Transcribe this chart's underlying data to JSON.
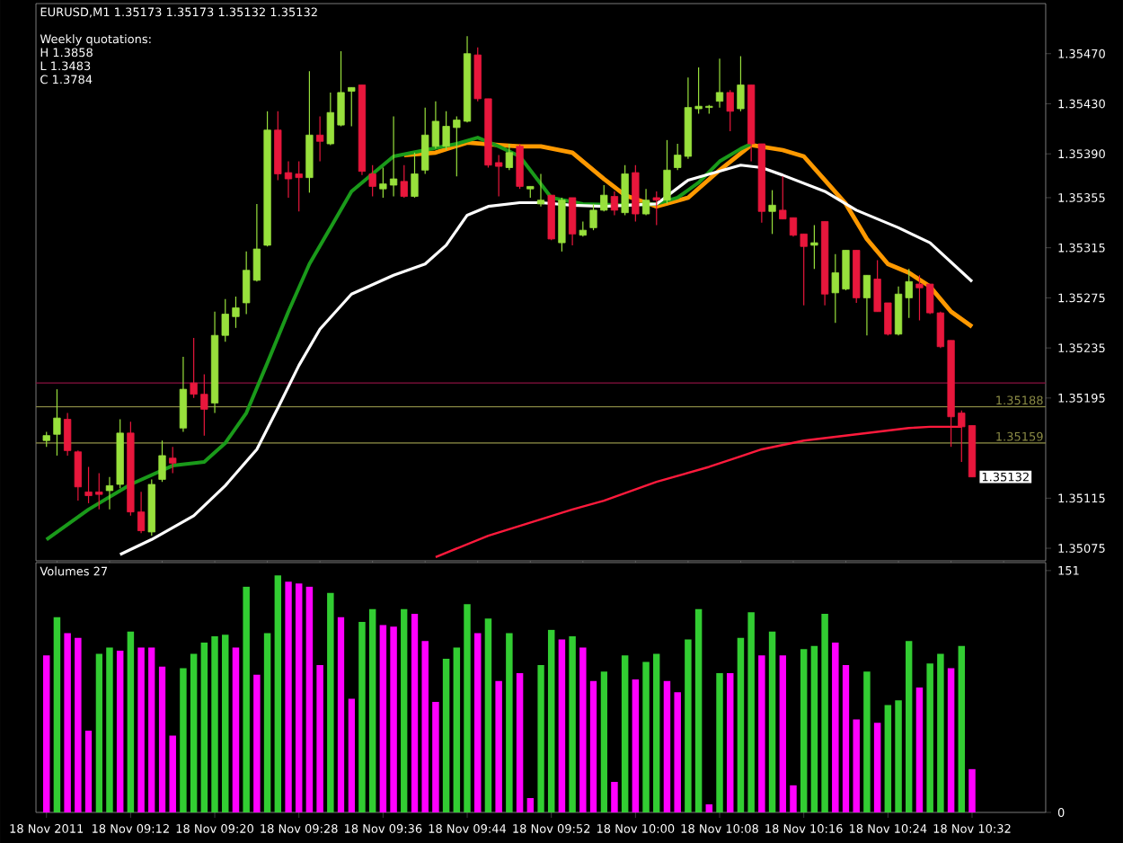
{
  "chart_data": [
    {
      "type": "candlestick",
      "title": "EURUSD,M1  1.35173 1.35173 1.35132 1.35132",
      "annotations": [
        "Weekly quotations:",
        "H 1.3858",
        "L 1.3483",
        "C 1.3784",
        {
          "text": "1.35132",
          "x": "2011-11-18T10:32",
          "y": 1.35132
        }
      ],
      "x": [
        "2011-11-18T09:04",
        "2011-11-18T09:05",
        "2011-11-18T09:06",
        "2011-11-18T09:07",
        "2011-11-18T09:08",
        "2011-11-18T09:09",
        "2011-11-18T09:10",
        "2011-11-18T09:11",
        "2011-11-18T09:12",
        "2011-11-18T09:13",
        "2011-11-18T09:14",
        "2011-11-18T09:15",
        "2011-11-18T09:16",
        "2011-11-18T09:17",
        "2011-11-18T09:18",
        "2011-11-18T09:19",
        "2011-11-18T09:20",
        "2011-11-18T09:21",
        "2011-11-18T09:22",
        "2011-11-18T09:23",
        "2011-11-18T09:24",
        "2011-11-18T09:25",
        "2011-11-18T09:26",
        "2011-11-18T09:27",
        "2011-11-18T09:28",
        "2011-11-18T09:29",
        "2011-11-18T09:30",
        "2011-11-18T09:31",
        "2011-11-18T09:32",
        "2011-11-18T09:33",
        "2011-11-18T09:34",
        "2011-11-18T09:35",
        "2011-11-18T09:36",
        "2011-11-18T09:37",
        "2011-11-18T09:38",
        "2011-11-18T09:39",
        "2011-11-18T09:40",
        "2011-11-18T09:41",
        "2011-11-18T09:42",
        "2011-11-18T09:43",
        "2011-11-18T09:44",
        "2011-11-18T09:45",
        "2011-11-18T09:46",
        "2011-11-18T09:47",
        "2011-11-18T09:48",
        "2011-11-18T09:49",
        "2011-11-18T09:50",
        "2011-11-18T09:51",
        "2011-11-18T09:52",
        "2011-11-18T09:53",
        "2011-11-18T09:54",
        "2011-11-18T09:55",
        "2011-11-18T09:56",
        "2011-11-18T09:57",
        "2011-11-18T09:58",
        "2011-11-18T09:59",
        "2011-11-18T10:00",
        "2011-11-18T10:01",
        "2011-11-18T10:02",
        "2011-11-18T10:03",
        "2011-11-18T10:04",
        "2011-11-18T10:05",
        "2011-11-18T10:06",
        "2011-11-18T10:07",
        "2011-11-18T10:08",
        "2011-11-18T10:09",
        "2011-11-18T10:10",
        "2011-11-18T10:11",
        "2011-11-18T10:12",
        "2011-11-18T10:13",
        "2011-11-18T10:14",
        "2011-11-18T10:15",
        "2011-11-18T10:16",
        "2011-11-18T10:17",
        "2011-11-18T10:18",
        "2011-11-18T10:19",
        "2011-11-18T10:20",
        "2011-11-18T10:21",
        "2011-11-18T10:22",
        "2011-11-18T10:23",
        "2011-11-18T10:24",
        "2011-11-18T10:25",
        "2011-11-18T10:26",
        "2011-11-18T10:27",
        "2011-11-18T10:28",
        "2011-11-18T10:29",
        "2011-11-18T10:30",
        "2011-11-18T10:31",
        "2011-11-18T10:32"
      ],
      "series": [
        {
          "type": "line",
          "color": "#ff9900",
          "x": [
            "2011-11-18T09:38",
            "2011-11-18T09:41",
            "2011-11-18T09:44",
            "2011-11-18T09:47",
            "2011-11-18T09:49",
            "2011-11-18T09:51",
            "2011-11-18T09:54",
            "2011-11-18T09:57",
            "2011-11-18T09:59",
            "2011-11-18T10:02",
            "2011-11-18T10:05",
            "2011-11-18T10:08",
            "2011-11-18T10:11",
            "2011-11-18T10:14",
            "2011-11-18T10:16",
            "2011-11-18T10:18",
            "2011-11-18T10:20",
            "2011-11-18T10:22",
            "2011-11-18T10:24",
            "2011-11-18T10:26",
            "2011-11-18T10:28",
            "2011-11-18T10:30",
            "2011-11-18T10:32"
          ],
          "values": [
            1.35389,
            1.35391,
            1.35399,
            1.35397,
            1.35396,
            1.35396,
            1.35391,
            1.3537,
            1.35357,
            1.35348,
            1.35355,
            1.35377,
            1.35397,
            1.35393,
            1.35388,
            1.35369,
            1.3535,
            1.35322,
            1.35302,
            1.35295,
            1.35284,
            1.35264,
            1.35252
          ]
        },
        {
          "type": "line",
          "color": "#1a9a1a",
          "x": [
            "2011-11-18T09:04",
            "2011-11-18T09:08",
            "2011-11-18T09:12",
            "2011-11-18T09:16",
            "2011-11-18T09:19",
            "2011-11-18T09:21",
            "2011-11-18T09:23",
            "2011-11-18T09:25",
            "2011-11-18T09:27",
            "2011-11-18T09:29",
            "2011-11-18T09:31",
            "2011-11-18T09:33",
            "2011-11-18T09:35",
            "2011-11-18T09:37",
            "2011-11-18T09:40",
            "2011-11-18T09:43",
            "2011-11-18T09:45",
            "2011-11-18T09:47",
            "2011-11-18T09:49",
            "2011-11-18T09:52",
            "2011-11-18T09:55",
            "2011-11-18T09:59",
            "2011-11-18T10:02",
            "2011-11-18T10:04",
            "2011-11-18T10:06",
            "2011-11-18T10:08",
            "2011-11-18T10:10",
            "2011-11-18T10:11"
          ],
          "values": [
            1.35082,
            1.35106,
            1.35126,
            1.35141,
            1.35144,
            1.35159,
            1.35183,
            1.35223,
            1.35264,
            1.35302,
            1.35331,
            1.3536,
            1.35374,
            1.35388,
            1.35393,
            1.35398,
            1.35403,
            1.35396,
            1.35388,
            1.35355,
            1.3535,
            1.35349,
            1.3535,
            1.35355,
            1.35367,
            1.35384,
            1.35394,
            1.35398
          ]
        },
        {
          "type": "line",
          "color": "#ffffff",
          "x": [
            "2011-11-18T09:11",
            "2011-11-18T09:14",
            "2011-11-18T09:18",
            "2011-11-18T09:21",
            "2011-11-18T09:24",
            "2011-11-18T09:26",
            "2011-11-18T09:28",
            "2011-11-18T09:30",
            "2011-11-18T09:33",
            "2011-11-18T09:37",
            "2011-11-18T09:40",
            "2011-11-18T09:42",
            "2011-11-18T09:44",
            "2011-11-18T09:46",
            "2011-11-18T09:49",
            "2011-11-18T09:51",
            "2011-11-18T09:54",
            "2011-11-18T09:57",
            "2011-11-18T10:02",
            "2011-11-18T10:05",
            "2011-11-18T10:10",
            "2011-11-18T10:12",
            "2011-11-18T10:14",
            "2011-11-18T10:18",
            "2011-11-18T10:21",
            "2011-11-18T10:25",
            "2011-11-18T10:28",
            "2011-11-18T10:32"
          ],
          "values": [
            1.3507,
            1.35082,
            1.35101,
            1.35125,
            1.35154,
            1.35187,
            1.35221,
            1.3525,
            1.35278,
            1.35293,
            1.35302,
            1.35317,
            1.35341,
            1.35348,
            1.35351,
            1.35351,
            1.35349,
            1.35348,
            1.3535,
            1.35369,
            1.35381,
            1.35379,
            1.35373,
            1.3536,
            1.35345,
            1.35331,
            1.35319,
            1.35288
          ]
        },
        {
          "type": "line",
          "color": "#ff1a3c",
          "x": [
            "2011-11-18T09:41",
            "2011-11-18T09:46",
            "2011-11-18T09:54",
            "2011-11-18T09:57",
            "2011-11-18T10:02",
            "2011-11-18T10:07",
            "2011-11-18T10:12",
            "2011-11-18T10:16",
            "2011-11-18T10:21",
            "2011-11-18T10:26",
            "2011-11-18T10:28",
            "2011-11-18T10:31"
          ],
          "values": [
            1.35068,
            1.35085,
            1.35106,
            1.35113,
            1.35128,
            1.3514,
            1.35154,
            1.35161,
            1.35166,
            1.35171,
            1.35172,
            1.35172
          ]
        },
        {
          "type": "candlestick",
          "colors": [
            "#98e03c",
            "#98e03c",
            "#e8173c",
            "#e8173c",
            "#e8173c",
            "#e8173c",
            "#98e03c",
            "#98e03c",
            "#e8173c",
            "#e8173c",
            "#98e03c",
            "#98e03c",
            "#e8173c",
            "#98e03c",
            "#e8173c",
            "#e8173c",
            "#98e03c",
            "#98e03c",
            "#98e03c",
            "#98e03c",
            "#98e03c",
            "#98e03c",
            "#e8173c",
            "#e8173c",
            "#e8173c",
            "#98e03c",
            "#e8173c",
            "#98e03c",
            "#98e03c",
            "#98e03c",
            "#e8173c",
            "#e8173c",
            "#98e03c",
            "#98e03c",
            "#e8173c",
            "#98e03c",
            "#98e03c",
            "#98e03c",
            "#98e03c",
            "#98e03c",
            "#98e03c",
            "#e8173c",
            "#e8173c",
            "#e8173c",
            "#98e03c",
            "#e8173c",
            "#98e03c",
            "#98e03c",
            "#e8173c",
            "#98e03c",
            "#e8173c",
            "#98e03c",
            "#98e03c",
            "#98e03c",
            "#e8173c",
            "#98e03c",
            "#e8173c",
            "#98e03c",
            "#e8173c",
            "#98e03c",
            "#98e03c",
            "#98e03c",
            "#98e03c",
            "#98e03c",
            "#98e03c",
            "#e8173c",
            "#98e03c",
            "#e8173c",
            "#e8173c",
            "#98e03c",
            "#e8173c",
            "#e8173c",
            "#e8173c",
            "#98e03c",
            "#e8173c",
            "#98e03c",
            "#98e03c",
            "#e8173c",
            "#98e03c",
            "#e8173c",
            "#e8173c",
            "#98e03c",
            "#98e03c",
            "#e8173c",
            "#e8173c",
            "#e8173c",
            "#e8173c",
            "#e8173c",
            "#e8173c"
          ],
          "ohlc": [
            [
              1.35161,
              1.35168,
              1.35156,
              1.35165
            ],
            [
              1.35166,
              1.35202,
              1.35149,
              1.35179
            ],
            [
              1.35178,
              1.35183,
              1.35149,
              1.35153
            ],
            [
              1.35152,
              1.35153,
              1.35113,
              1.35124
            ],
            [
              1.3512,
              1.3514,
              1.35111,
              1.35117
            ],
            [
              1.3512,
              1.35135,
              1.35106,
              1.35118
            ],
            [
              1.35121,
              1.35132,
              1.35106,
              1.35125
            ],
            [
              1.35126,
              1.35178,
              1.35123,
              1.35167
            ],
            [
              1.35167,
              1.35176,
              1.35101,
              1.35104
            ],
            [
              1.35104,
              1.3512,
              1.35087,
              1.35089
            ],
            [
              1.35088,
              1.3513,
              1.35085,
              1.35126
            ],
            [
              1.3513,
              1.35161,
              1.35128,
              1.35149
            ],
            [
              1.35147,
              1.35156,
              1.35135,
              1.35143
            ],
            [
              1.35171,
              1.35228,
              1.35168,
              1.35202
            ],
            [
              1.35207,
              1.35243,
              1.35195,
              1.35198
            ],
            [
              1.35198,
              1.35214,
              1.35165,
              1.35186
            ],
            [
              1.35191,
              1.35264,
              1.35183,
              1.35245
            ],
            [
              1.35245,
              1.35274,
              1.3524,
              1.35262
            ],
            [
              1.3526,
              1.35276,
              1.35251,
              1.35267
            ],
            [
              1.35271,
              1.35312,
              1.35262,
              1.35297
            ],
            [
              1.35289,
              1.3535,
              1.35288,
              1.35314
            ],
            [
              1.35317,
              1.35424,
              1.35316,
              1.35409
            ],
            [
              1.35409,
              1.35424,
              1.35369,
              1.35374
            ],
            [
              1.35375,
              1.35384,
              1.35355,
              1.3537
            ],
            [
              1.35374,
              1.35384,
              1.35344,
              1.35371
            ],
            [
              1.35371,
              1.35456,
              1.35359,
              1.35405
            ],
            [
              1.35405,
              1.3542,
              1.35384,
              1.354
            ],
            [
              1.35398,
              1.35439,
              1.35397,
              1.35423
            ],
            [
              1.35413,
              1.35472,
              1.35412,
              1.35439
            ],
            [
              1.3544,
              1.35443,
              1.35412,
              1.35443
            ],
            [
              1.35445,
              1.35445,
              1.35373,
              1.35376
            ],
            [
              1.35374,
              1.35381,
              1.35356,
              1.35364
            ],
            [
              1.35362,
              1.35379,
              1.35355,
              1.35366
            ],
            [
              1.35365,
              1.3542,
              1.35356,
              1.3537
            ],
            [
              1.35368,
              1.35381,
              1.35355,
              1.35356
            ],
            [
              1.35356,
              1.35391,
              1.35355,
              1.35374
            ],
            [
              1.35377,
              1.35427,
              1.35374,
              1.35405
            ],
            [
              1.35396,
              1.35432,
              1.35394,
              1.35416
            ],
            [
              1.35396,
              1.35424,
              1.35393,
              1.35412
            ],
            [
              1.35411,
              1.3542,
              1.35372,
              1.35417
            ],
            [
              1.35416,
              1.35484,
              1.35415,
              1.3547
            ],
            [
              1.35469,
              1.35475,
              1.35432,
              1.35434
            ],
            [
              1.35434,
              1.35434,
              1.35379,
              1.35381
            ],
            [
              1.35383,
              1.35389,
              1.35356,
              1.3538
            ],
            [
              1.35379,
              1.35398,
              1.35377,
              1.35391
            ],
            [
              1.35396,
              1.35398,
              1.35362,
              1.35364
            ],
            [
              1.35362,
              1.35364,
              1.35355,
              1.35364
            ],
            [
              1.3535,
              1.35374,
              1.35348,
              1.35353
            ],
            [
              1.35357,
              1.35357,
              1.35321,
              1.35322
            ],
            [
              1.35319,
              1.35355,
              1.35312,
              1.35353
            ],
            [
              1.35355,
              1.35355,
              1.35317,
              1.35326
            ],
            [
              1.35325,
              1.35336,
              1.35324,
              1.35329
            ],
            [
              1.35331,
              1.3535,
              1.35329,
              1.35345
            ],
            [
              1.35345,
              1.35365,
              1.35344,
              1.35357
            ],
            [
              1.35356,
              1.3536,
              1.35341,
              1.35345
            ],
            [
              1.35343,
              1.35381,
              1.35341,
              1.35374
            ],
            [
              1.35375,
              1.35381,
              1.35336,
              1.35342
            ],
            [
              1.35342,
              1.35362,
              1.35341,
              1.35353
            ],
            [
              1.35355,
              1.3536,
              1.35333,
              1.35353
            ],
            [
              1.35353,
              1.35401,
              1.3535,
              1.35377
            ],
            [
              1.35379,
              1.35398,
              1.35377,
              1.35389
            ],
            [
              1.35388,
              1.35451,
              1.35386,
              1.35427
            ],
            [
              1.35426,
              1.35459,
              1.35422,
              1.35428
            ],
            [
              1.35427,
              1.35429,
              1.35422,
              1.35428
            ],
            [
              1.35432,
              1.35466,
              1.35427,
              1.35439
            ],
            [
              1.35439,
              1.35441,
              1.35408,
              1.35424
            ],
            [
              1.35426,
              1.35468,
              1.35424,
              1.35445
            ],
            [
              1.35445,
              1.35445,
              1.35384,
              1.35398
            ],
            [
              1.35398,
              1.35398,
              1.35335,
              1.35344
            ],
            [
              1.35344,
              1.35361,
              1.35326,
              1.35349
            ],
            [
              1.35345,
              1.35372,
              1.35338,
              1.35338
            ],
            [
              1.35339,
              1.35339,
              1.35324,
              1.35325
            ],
            [
              1.35326,
              1.35326,
              1.35269,
              1.35316
            ],
            [
              1.35317,
              1.35333,
              1.35298,
              1.35319
            ],
            [
              1.35336,
              1.35336,
              1.35269,
              1.35278
            ],
            [
              1.35279,
              1.3531,
              1.35255,
              1.35295
            ],
            [
              1.35282,
              1.35313,
              1.35281,
              1.35313
            ],
            [
              1.35313,
              1.35313,
              1.35271,
              1.35275
            ],
            [
              1.35275,
              1.35293,
              1.35245,
              1.35293
            ],
            [
              1.3529,
              1.35305,
              1.35264,
              1.35264
            ],
            [
              1.35271,
              1.35271,
              1.35245,
              1.35246
            ],
            [
              1.35246,
              1.35284,
              1.35245,
              1.35278
            ],
            [
              1.35275,
              1.35298,
              1.35259,
              1.35288
            ],
            [
              1.35286,
              1.35293,
              1.35257,
              1.35283
            ],
            [
              1.35286,
              1.35286,
              1.35262,
              1.35263
            ],
            [
              1.35263,
              1.35264,
              1.35235,
              1.35236
            ],
            [
              1.35241,
              1.35241,
              1.35156,
              1.3518
            ],
            [
              1.35183,
              1.35185,
              1.35144,
              1.35172
            ],
            [
              1.35173,
              1.35173,
              1.35132,
              1.35132
            ]
          ]
        }
      ],
      "ref_lines": [
        {
          "axis": "y",
          "value": 1.35207,
          "color": "#8a1040"
        },
        {
          "axis": "y",
          "value": 1.35188,
          "label": "1.35188",
          "color": "#8c8c46"
        },
        {
          "axis": "y",
          "value": 1.35159,
          "label": "1.35159",
          "color": "#8c8c46"
        }
      ],
      "xlim": [
        "2011-11-18T09:03",
        "2011-11-18T10:39"
      ],
      "ylim": [
        1.35065,
        1.3551
      ],
      "yticks": [
        {
          "value": 1.3547,
          "label": "1.35470"
        },
        {
          "value": 1.3543,
          "label": "1.35430"
        },
        {
          "value": 1.3539,
          "label": "1.35390"
        },
        {
          "value": 1.35355,
          "label": "1.35355"
        },
        {
          "value": 1.35315,
          "label": "1.35315"
        },
        {
          "value": 1.35275,
          "label": "1.35275"
        },
        {
          "value": 1.35235,
          "label": "1.35235"
        },
        {
          "value": 1.35195,
          "label": "1.35195"
        },
        {
          "value": 1.35115,
          "label": "1.35115"
        },
        {
          "value": 1.35075,
          "label": "1.35075"
        }
      ],
      "tick_labels": "y"
    },
    {
      "type": "bar",
      "title": "Volumes 27",
      "x": [
        "2011-11-18T09:04",
        "2011-11-18T09:05",
        "2011-11-18T09:06",
        "2011-11-18T09:07",
        "2011-11-18T09:08",
        "2011-11-18T09:09",
        "2011-11-18T09:10",
        "2011-11-18T09:11",
        "2011-11-18T09:12",
        "2011-11-18T09:13",
        "2011-11-18T09:14",
        "2011-11-18T09:15",
        "2011-11-18T09:16",
        "2011-11-18T09:17",
        "2011-11-18T09:18",
        "2011-11-18T09:19",
        "2011-11-18T09:20",
        "2011-11-18T09:21",
        "2011-11-18T09:22",
        "2011-11-18T09:23",
        "2011-11-18T09:24",
        "2011-11-18T09:25",
        "2011-11-18T09:26",
        "2011-11-18T09:27",
        "2011-11-18T09:28",
        "2011-11-18T09:29",
        "2011-11-18T09:30",
        "2011-11-18T09:31",
        "2011-11-18T09:32",
        "2011-11-18T09:33",
        "2011-11-18T09:34",
        "2011-11-18T09:35",
        "2011-11-18T09:36",
        "2011-11-18T09:37",
        "2011-11-18T09:38",
        "2011-11-18T09:39",
        "2011-11-18T09:40",
        "2011-11-18T09:41",
        "2011-11-18T09:42",
        "2011-11-18T09:43",
        "2011-11-18T09:44",
        "2011-11-18T09:45",
        "2011-11-18T09:46",
        "2011-11-18T09:47",
        "2011-11-18T09:48",
        "2011-11-18T09:49",
        "2011-11-18T09:50",
        "2011-11-18T09:51",
        "2011-11-18T09:52",
        "2011-11-18T09:53",
        "2011-11-18T09:54",
        "2011-11-18T09:55",
        "2011-11-18T09:56",
        "2011-11-18T09:57",
        "2011-11-18T09:58",
        "2011-11-18T09:59",
        "2011-11-18T10:00",
        "2011-11-18T10:01",
        "2011-11-18T10:02",
        "2011-11-18T10:03",
        "2011-11-18T10:04",
        "2011-11-18T10:05",
        "2011-11-18T10:06",
        "2011-11-18T10:07",
        "2011-11-18T10:08",
        "2011-11-18T10:09",
        "2011-11-18T10:10",
        "2011-11-18T10:11",
        "2011-11-18T10:12",
        "2011-11-18T10:13",
        "2011-11-18T10:14",
        "2011-11-18T10:15",
        "2011-11-18T10:16",
        "2011-11-18T10:17",
        "2011-11-18T10:18",
        "2011-11-18T10:19",
        "2011-11-18T10:20",
        "2011-11-18T10:21",
        "2011-11-18T10:22",
        "2011-11-18T10:23",
        "2011-11-18T10:24",
        "2011-11-18T10:25",
        "2011-11-18T10:26",
        "2011-11-18T10:27",
        "2011-11-18T10:28",
        "2011-11-18T10:29",
        "2011-11-18T10:30",
        "2011-11-18T10:31",
        "2011-11-18T10:32"
      ],
      "values": [
        98,
        122,
        112,
        109,
        51,
        99,
        103,
        101,
        113,
        103,
        103,
        91,
        48,
        90,
        99,
        106,
        110,
        111,
        103,
        141,
        86,
        112,
        148,
        144,
        143,
        141,
        92,
        137,
        122,
        71,
        119,
        127,
        117,
        116,
        127,
        124,
        107,
        69,
        96,
        103,
        130,
        112,
        121,
        82,
        112,
        87,
        9,
        92,
        114,
        108,
        110,
        103,
        82,
        88,
        19,
        98,
        83,
        94,
        99,
        82,
        75,
        108,
        127,
        5,
        87,
        87,
        109,
        125,
        98,
        113,
        98,
        17,
        102,
        104,
        124,
        106,
        92,
        58,
        88,
        56,
        67,
        70,
        107,
        78,
        93,
        99,
        90,
        104,
        27
      ],
      "colors": [
        "#ff00ff",
        "#32cd32",
        "#ff00ff",
        "#ff00ff",
        "#ff00ff",
        "#32cd32",
        "#32cd32",
        "#ff00ff",
        "#32cd32",
        "#ff00ff",
        "#ff00ff",
        "#ff00ff",
        "#ff00ff",
        "#32cd32",
        "#32cd32",
        "#32cd32",
        "#32cd32",
        "#32cd32",
        "#ff00ff",
        "#32cd32",
        "#ff00ff",
        "#32cd32",
        "#32cd32",
        "#ff00ff",
        "#ff00ff",
        "#ff00ff",
        "#ff00ff",
        "#32cd32",
        "#ff00ff",
        "#ff00ff",
        "#32cd32",
        "#32cd32",
        "#ff00ff",
        "#ff00ff",
        "#32cd32",
        "#ff00ff",
        "#ff00ff",
        "#ff00ff",
        "#32cd32",
        "#32cd32",
        "#32cd32",
        "#ff00ff",
        "#32cd32",
        "#ff00ff",
        "#32cd32",
        "#ff00ff",
        "#ff00ff",
        "#32cd32",
        "#32cd32",
        "#ff00ff",
        "#32cd32",
        "#ff00ff",
        "#ff00ff",
        "#32cd32",
        "#ff00ff",
        "#32cd32",
        "#ff00ff",
        "#32cd32",
        "#32cd32",
        "#ff00ff",
        "#ff00ff",
        "#32cd32",
        "#32cd32",
        "#ff00ff",
        "#32cd32",
        "#ff00ff",
        "#32cd32",
        "#32cd32",
        "#ff00ff",
        "#32cd32",
        "#ff00ff",
        "#ff00ff",
        "#32cd32",
        "#32cd32",
        "#32cd32",
        "#ff00ff",
        "#ff00ff",
        "#ff00ff",
        "#32cd32",
        "#ff00ff",
        "#32cd32",
        "#32cd32",
        "#32cd32",
        "#ff00ff",
        "#32cd32",
        "#32cd32",
        "#ff00ff",
        "#32cd32",
        "#ff00ff"
      ],
      "xlim": [
        "2011-11-18T09:03",
        "2011-11-18T10:39"
      ],
      "xticks": [
        {
          "value": "2011-11-18T09:04",
          "label": "18 Nov 2011"
        },
        {
          "value": "2011-11-18T09:12",
          "label": "18 Nov 09:12"
        },
        {
          "value": "2011-11-18T09:20",
          "label": "18 Nov 09:20"
        },
        {
          "value": "2011-11-18T09:28",
          "label": "18 Nov 09:28"
        },
        {
          "value": "2011-11-18T09:36",
          "label": "18 Nov 09:36"
        },
        {
          "value": "2011-11-18T09:44",
          "label": "18 Nov 09:44"
        },
        {
          "value": "2011-11-18T09:52",
          "label": "18 Nov 09:52"
        },
        {
          "value": "2011-11-18T10:00",
          "label": "18 Nov 10:00"
        },
        {
          "value": "2011-11-18T10:08",
          "label": "18 Nov 10:08"
        },
        {
          "value": "2011-11-18T10:16",
          "label": "18 Nov 10:16"
        },
        {
          "value": "2011-11-18T10:24",
          "label": "18 Nov 10:24"
        },
        {
          "value": "2011-11-18T10:32",
          "label": "18 Nov 10:32"
        }
      ],
      "ylim": [
        0,
        156
      ],
      "yticks": [
        0,
        151
      ]
    }
  ]
}
